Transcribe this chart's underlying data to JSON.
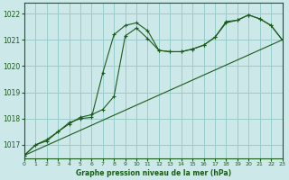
{
  "title": "Graphe pression niveau de la mer (hPa)",
  "background_color": "#cce8e8",
  "grid_color": "#99cccc",
  "line_color": "#1a5c1a",
  "text_color": "#1a5c1a",
  "xlim": [
    0,
    23
  ],
  "ylim": [
    1016.5,
    1022.4
  ],
  "yticks": [
    1017,
    1018,
    1019,
    1020,
    1021,
    1022
  ],
  "xticks": [
    0,
    1,
    2,
    3,
    4,
    5,
    6,
    7,
    8,
    9,
    10,
    11,
    12,
    13,
    14,
    15,
    16,
    17,
    18,
    19,
    20,
    21,
    22,
    23
  ],
  "series1_x": [
    0,
    1,
    2,
    3,
    4,
    5,
    6,
    7,
    8,
    9,
    10,
    11,
    12,
    13,
    14,
    15,
    16,
    17,
    18,
    19,
    20,
    21,
    22,
    23
  ],
  "series1_y": [
    1016.6,
    1017.0,
    1017.2,
    1017.5,
    1017.8,
    1018.05,
    1018.15,
    1018.35,
    1018.85,
    1021.15,
    1021.45,
    1021.05,
    1020.6,
    1020.55,
    1020.55,
    1020.65,
    1020.8,
    1021.1,
    1021.7,
    1021.75,
    1021.95,
    1021.8,
    1021.55,
    1021.0
  ],
  "series2_x": [
    0,
    1,
    2,
    3,
    4,
    5,
    6,
    7,
    8,
    9,
    10,
    11,
    12,
    13,
    14,
    15,
    16,
    17,
    18,
    19,
    20,
    21,
    22,
    23
  ],
  "series2_y": [
    1016.6,
    1017.0,
    1017.15,
    1017.5,
    1017.85,
    1018.0,
    1018.05,
    1019.75,
    1021.2,
    1021.55,
    1021.65,
    1021.35,
    1020.6,
    1020.55,
    1020.55,
    1020.65,
    1020.8,
    1021.1,
    1021.65,
    1021.75,
    1021.95,
    1021.8,
    1021.55,
    1021.0
  ],
  "series3_x": [
    0,
    23
  ],
  "series3_y": [
    1016.6,
    1021.0
  ]
}
